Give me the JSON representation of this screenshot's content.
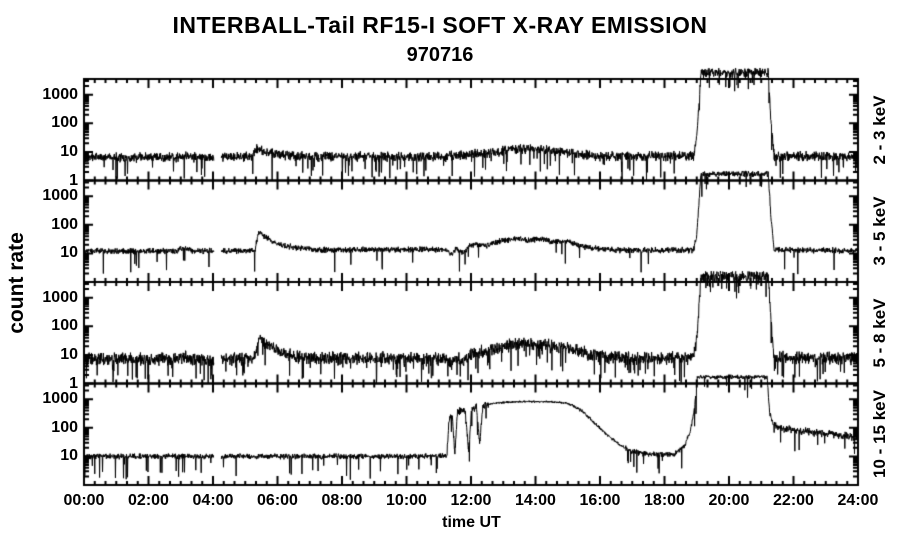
{
  "title": "INTERBALL-Tail RF15-I SOFT X-RAY EMISSION",
  "subtitle": "970716",
  "ylabel": "count rate",
  "xlabel": "time UT",
  "chart_data": {
    "type": "line",
    "line_color": "#000000",
    "background": "#ffffff",
    "x_unit": "hours UT",
    "x_range": [
      0,
      24
    ],
    "x_major_tick_hours": 2,
    "x_minor_tick_minutes": 20,
    "x_tick_labels": [
      "00:00",
      "02:00",
      "04:00",
      "06:00",
      "08:00",
      "10:00",
      "12:00",
      "14:00",
      "16:00",
      "18:00",
      "20:00",
      "22:00",
      "24:00"
    ],
    "y_scale": "log",
    "y_range": [
      1,
      3548
    ],
    "data_gap_hours": [
      [
        4.03,
        4.25
      ]
    ],
    "offscale_above_ymax_hours": [
      19.13,
      21.22
    ],
    "panels": [
      {
        "energy_band": "2 - 3 keV",
        "y_tick_labels": [
          1000,
          100,
          10,
          1
        ],
        "noise_spread_steps": [
          [
            0,
            0.2
          ]
        ],
        "dip_prob": 0.04,
        "gaps": [
          [
            4.03,
            4.25
          ]
        ],
        "profile": [
          [
            0,
            6.5
          ],
          [
            2.9,
            6.5
          ],
          [
            3.05,
            7.5
          ],
          [
            3.3,
            6.5
          ],
          [
            4.03,
            6.5
          ],
          [
            4.25,
            6.5
          ],
          [
            5.2,
            6.8
          ],
          [
            5.35,
            13
          ],
          [
            5.55,
            11
          ],
          [
            6.0,
            8
          ],
          [
            6.6,
            6.8
          ],
          [
            11.2,
            6.8
          ],
          [
            11.5,
            7.5
          ],
          [
            12.0,
            8
          ],
          [
            12.6,
            9.5
          ],
          [
            13.2,
            12
          ],
          [
            13.8,
            13
          ],
          [
            14.3,
            12
          ],
          [
            14.8,
            10
          ],
          [
            15.4,
            8
          ],
          [
            16.0,
            7
          ],
          [
            18.9,
            7
          ],
          [
            19.0,
            30
          ],
          [
            19.13,
            6000
          ],
          [
            21.22,
            6000
          ],
          [
            21.3,
            120
          ],
          [
            21.4,
            7
          ],
          [
            24,
            6.8
          ]
        ]
      },
      {
        "energy_band": "3 - 5 keV",
        "y_tick_labels": [
          1000,
          100,
          10
        ],
        "noise_spread_steps": [
          [
            0,
            0.12
          ]
        ],
        "dip_prob": 0.02,
        "gaps": [
          [
            4.03,
            4.25
          ]
        ],
        "profile": [
          [
            0,
            12
          ],
          [
            2.85,
            12
          ],
          [
            3.05,
            16
          ],
          [
            3.35,
            12.5
          ],
          [
            4.03,
            12
          ],
          [
            4.25,
            12
          ],
          [
            5.3,
            13
          ],
          [
            5.42,
            62
          ],
          [
            5.6,
            40
          ],
          [
            5.9,
            24
          ],
          [
            6.4,
            17
          ],
          [
            7.2,
            13.5
          ],
          [
            11.2,
            13.5
          ],
          [
            11.4,
            9
          ],
          [
            11.55,
            16
          ],
          [
            11.75,
            10
          ],
          [
            11.95,
            18
          ],
          [
            12.2,
            21
          ],
          [
            12.5,
            19
          ],
          [
            12.9,
            27
          ],
          [
            13.4,
            33
          ],
          [
            13.8,
            29
          ],
          [
            14.2,
            32
          ],
          [
            14.6,
            25
          ],
          [
            15.0,
            26
          ],
          [
            15.5,
            17
          ],
          [
            16.1,
            14
          ],
          [
            16.6,
            13
          ],
          [
            18.9,
            13
          ],
          [
            19.0,
            45
          ],
          [
            19.13,
            6000
          ],
          [
            21.22,
            6000
          ],
          [
            21.3,
            200
          ],
          [
            21.4,
            13
          ],
          [
            24,
            12.5
          ]
        ]
      },
      {
        "energy_band": "5 - 8 keV",
        "y_tick_labels": [
          1000,
          100,
          10,
          1
        ],
        "noise_spread_steps": [
          [
            0,
            0.26
          ]
        ],
        "dip_prob": 0.06,
        "gaps": [
          [
            4.03,
            4.25
          ]
        ],
        "profile": [
          [
            0,
            7
          ],
          [
            2.9,
            7.2
          ],
          [
            3.1,
            9
          ],
          [
            3.4,
            7.3
          ],
          [
            4.03,
            7
          ],
          [
            4.25,
            7
          ],
          [
            5.3,
            8
          ],
          [
            5.42,
            42
          ],
          [
            5.6,
            28
          ],
          [
            6.0,
            14
          ],
          [
            6.5,
            9
          ],
          [
            7.2,
            7.5
          ],
          [
            11.2,
            7.5
          ],
          [
            11.4,
            5
          ],
          [
            11.55,
            9
          ],
          [
            11.75,
            5.5
          ],
          [
            12.0,
            10
          ],
          [
            12.3,
            13
          ],
          [
            12.7,
            15
          ],
          [
            13.1,
            20
          ],
          [
            13.5,
            26
          ],
          [
            13.9,
            22
          ],
          [
            14.3,
            24
          ],
          [
            14.7,
            18
          ],
          [
            15.1,
            17
          ],
          [
            15.6,
            11
          ],
          [
            16.2,
            8.5
          ],
          [
            16.8,
            7.8
          ],
          [
            18.9,
            7.8
          ],
          [
            19.0,
            35
          ],
          [
            19.13,
            6000
          ],
          [
            21.22,
            6000
          ],
          [
            21.3,
            150
          ],
          [
            21.4,
            8
          ],
          [
            24,
            7.5
          ]
        ]
      },
      {
        "energy_band": "10 - 15 keV",
        "y_tick_labels": [
          1000,
          100,
          10
        ],
        "noise_spread_steps": [
          [
            0,
            0.11
          ],
          [
            11.25,
            0.16
          ],
          [
            12.55,
            0.045
          ],
          [
            15.0,
            0.06
          ],
          [
            16.8,
            0.12
          ],
          [
            18.5,
            0.09
          ],
          [
            21.35,
            0.16
          ]
        ],
        "dip_prob": 0.03,
        "gaps": [
          [
            4.03,
            4.25
          ]
        ],
        "profile": [
          [
            0,
            10
          ],
          [
            4.03,
            10
          ],
          [
            4.25,
            10
          ],
          [
            11.25,
            10
          ],
          [
            11.32,
            200
          ],
          [
            11.42,
            240
          ],
          [
            11.5,
            12
          ],
          [
            11.58,
            320
          ],
          [
            11.72,
            430
          ],
          [
            11.82,
            380
          ],
          [
            11.93,
            14
          ],
          [
            12.02,
            480
          ],
          [
            12.17,
            520
          ],
          [
            12.27,
            30
          ],
          [
            12.37,
            560
          ],
          [
            12.52,
            650
          ],
          [
            12.75,
            740
          ],
          [
            13.1,
            790
          ],
          [
            13.5,
            810
          ],
          [
            13.9,
            830
          ],
          [
            14.3,
            820
          ],
          [
            14.6,
            790
          ],
          [
            14.9,
            750
          ],
          [
            15.1,
            650
          ],
          [
            15.45,
            380
          ],
          [
            15.8,
            160
          ],
          [
            16.2,
            60
          ],
          [
            16.6,
            26
          ],
          [
            17.0,
            15
          ],
          [
            17.5,
            12
          ],
          [
            18.3,
            12
          ],
          [
            18.6,
            22
          ],
          [
            18.8,
            70
          ],
          [
            18.93,
            500
          ],
          [
            19.02,
            6000
          ],
          [
            21.18,
            6000
          ],
          [
            21.26,
            350
          ],
          [
            21.38,
            120
          ],
          [
            21.9,
            85
          ],
          [
            22.6,
            70
          ],
          [
            23.3,
            58
          ],
          [
            24,
            48
          ]
        ]
      }
    ]
  }
}
